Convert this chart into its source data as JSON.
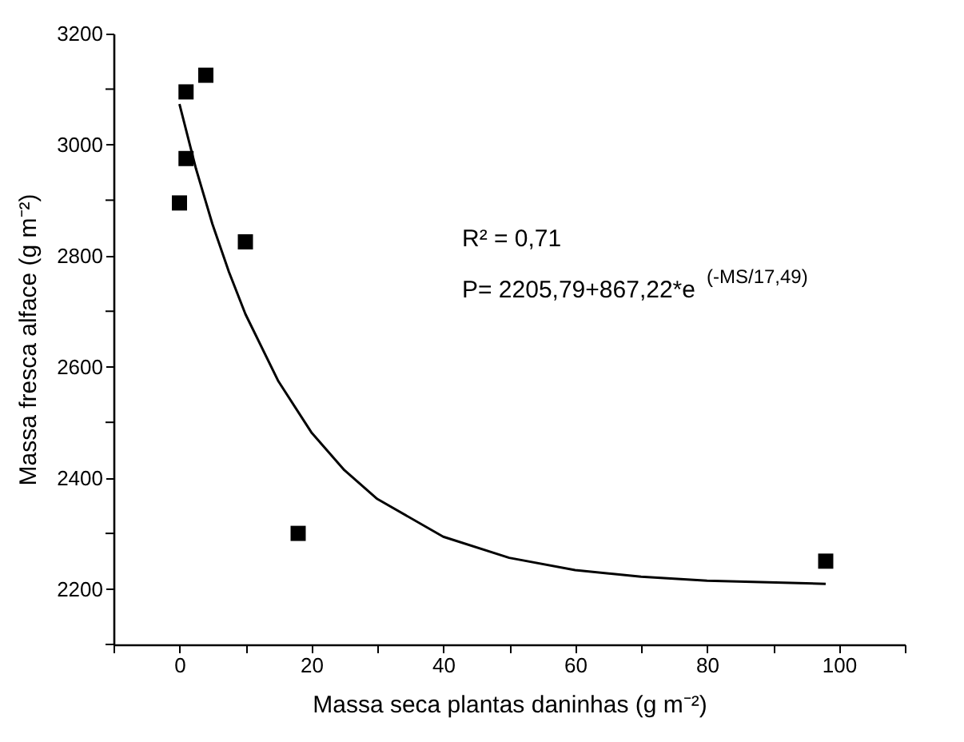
{
  "chart_data": {
    "type": "scatter",
    "xlabel": "Massa seca plantas daninhas (g m⁻²)",
    "ylabel": "Massa fresca alface (g m⁻²)",
    "xlim": [
      -10,
      110
    ],
    "ylim": [
      2100,
      3200
    ],
    "xticks": [
      {
        "value": -10,
        "label": null
      },
      0,
      {
        "value": 10,
        "label": null
      },
      20,
      {
        "value": 30,
        "label": null
      },
      40,
      {
        "value": 50,
        "label": null
      },
      60,
      {
        "value": 70,
        "label": null
      },
      80,
      {
        "value": 90,
        "label": null
      },
      100,
      {
        "value": 110,
        "label": null
      }
    ],
    "yticks": [
      {
        "value": 2100,
        "label": null
      },
      2200,
      {
        "value": 2300,
        "label": null
      },
      2400,
      {
        "value": 2500,
        "label": null
      },
      2600,
      {
        "value": 2700,
        "label": null
      },
      2800,
      {
        "value": 2900,
        "label": null
      },
      3000,
      {
        "value": 3100,
        "label": null
      },
      3200
    ],
    "grid": false,
    "series": [
      {
        "marker": "square",
        "color": "#000000",
        "x": [
          0,
          1,
          1,
          4,
          10,
          18,
          98
        ],
        "values": [
          2895,
          3095,
          2975,
          3125,
          2825,
          2300,
          2250
        ]
      },
      {
        "type": "line",
        "line_style": "solid",
        "marker": "none",
        "color": "#000000",
        "x": [
          0,
          2.5,
          5,
          7.5,
          10,
          15,
          20,
          25,
          30,
          40,
          50,
          60,
          70,
          80,
          98
        ],
        "values": [
          3073,
          2957,
          2857,
          2771,
          2695,
          2574,
          2482,
          2414,
          2362,
          2294,
          2256,
          2234,
          2222,
          2215,
          2209
        ]
      }
    ],
    "annotations": [
      "R² = 0,71",
      "P= 2205,79+867,22*e$^{(-MS/17,49)}$"
    ]
  }
}
